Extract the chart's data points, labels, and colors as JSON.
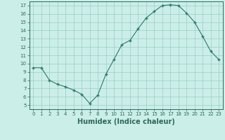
{
  "x": [
    0,
    1,
    2,
    3,
    4,
    5,
    6,
    7,
    8,
    9,
    10,
    11,
    12,
    13,
    14,
    15,
    16,
    17,
    18,
    19,
    20,
    21,
    22,
    23
  ],
  "y": [
    9.5,
    9.5,
    8.0,
    7.5,
    7.2,
    6.8,
    6.3,
    5.2,
    6.2,
    8.7,
    10.5,
    12.3,
    12.8,
    14.2,
    15.5,
    16.3,
    17.0,
    17.1,
    17.0,
    16.1,
    15.0,
    13.3,
    11.5,
    10.5
  ],
  "xlabel": "Humidex (Indice chaleur)",
  "ylim": [
    4.5,
    17.5
  ],
  "xlim": [
    -0.5,
    23.5
  ],
  "line_color": "#2a7a6a",
  "marker": "+",
  "marker_size": 3,
  "marker_lw": 1.0,
  "line_width": 0.8,
  "bg_color": "#cceee8",
  "grid_color": "#88c8be",
  "tick_color": "#2a6a5a",
  "xlabel_fontsize": 7,
  "tick_fontsize": 5,
  "ytick_min": 5,
  "ytick_max": 17
}
